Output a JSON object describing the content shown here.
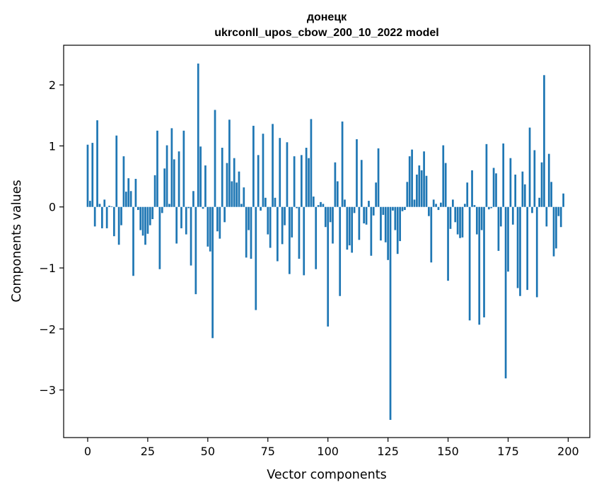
{
  "chart_data": {
    "type": "bar",
    "title": "донецк",
    "subtitle": "ukrconll_upos_cbow_200_10_2022 model",
    "xlabel": "Vector components",
    "ylabel": "Components values",
    "xlim": [
      -10,
      209
    ],
    "ylim": [
      -3.78,
      2.65
    ],
    "xticks": [
      0,
      25,
      50,
      75,
      100,
      125,
      150,
      175,
      200
    ],
    "xtick_labels": [
      "0",
      "25",
      "50",
      "75",
      "100",
      "125",
      "150",
      "175",
      "200"
    ],
    "yticks": [
      2,
      1,
      0,
      -1,
      -2,
      -3
    ],
    "ytick_labels": [
      "2",
      "1",
      "0",
      "−1",
      "−2",
      "−3"
    ],
    "bar_color": "#1f77b4",
    "grid": false,
    "x_start": 0,
    "values": [
      1.02,
      0.1,
      1.05,
      -0.32,
      1.42,
      0.05,
      -0.35,
      0.12,
      -0.35,
      0.02,
      0.01,
      -0.48,
      1.17,
      -0.62,
      -0.3,
      0.83,
      0.25,
      0.47,
      0.26,
      -1.13,
      0.46,
      -0.05,
      -0.38,
      -0.47,
      -0.62,
      -0.44,
      -0.3,
      -0.2,
      0.52,
      1.25,
      -1.02,
      -0.1,
      0.63,
      1.01,
      0.05,
      1.29,
      0.78,
      -0.6,
      0.91,
      -0.35,
      1.25,
      -0.45,
      -0.02,
      -0.96,
      0.26,
      -1.43,
      2.35,
      0.99,
      -0.03,
      0.68,
      -0.65,
      -0.73,
      -2.15,
      1.59,
      -0.4,
      -0.52,
      0.97,
      -0.25,
      0.72,
      1.43,
      0.42,
      0.8,
      0.4,
      0.58,
      0.05,
      0.32,
      -0.83,
      -0.38,
      -0.85,
      1.33,
      -1.69,
      0.85,
      -0.06,
      1.2,
      0.15,
      -0.45,
      -0.67,
      1.36,
      0.15,
      -0.89,
      1.13,
      -0.61,
      -0.3,
      1.06,
      -1.1,
      -0.5,
      0.83,
      -0.02,
      -0.85,
      0.85,
      -1.12,
      0.97,
      0.8,
      1.44,
      0.17,
      -1.02,
      0.03,
      0.08,
      0.05,
      -0.33,
      -1.96,
      -0.25,
      -0.6,
      0.73,
      0.42,
      -1.46,
      1.4,
      0.12,
      -0.7,
      -0.63,
      -0.75,
      -0.1,
      1.11,
      -0.54,
      0.77,
      -0.27,
      -0.29,
      0.1,
      -0.8,
      -0.14,
      0.4,
      0.96,
      -0.55,
      -0.13,
      -0.58,
      -0.87,
      -3.49,
      -0.06,
      -0.38,
      -0.77,
      -0.56,
      -0.07,
      -0.05,
      0.41,
      0.83,
      0.94,
      0.12,
      0.53,
      0.68,
      0.6,
      0.91,
      0.51,
      -0.15,
      -0.91,
      0.12,
      0.05,
      -0.05,
      0.07,
      1.01,
      0.72,
      -1.21,
      -0.36,
      0.12,
      -0.25,
      -0.45,
      -0.51,
      -0.5,
      0.05,
      0.4,
      -1.86,
      0.6,
      0.03,
      -0.45,
      -1.93,
      -0.38,
      -1.81,
      1.03,
      -0.04,
      -0.02,
      0.64,
      0.55,
      -0.72,
      -0.32,
      1.04,
      -2.81,
      -1.06,
      0.8,
      -0.29,
      0.53,
      -1.33,
      -1.46,
      0.58,
      0.37,
      -1.36,
      1.3,
      -0.1,
      0.93,
      -1.48,
      0.15,
      0.73,
      2.16,
      -0.32,
      0.87,
      0.41,
      -0.81,
      -0.68,
      -0.15,
      -0.33,
      0.22
    ]
  }
}
